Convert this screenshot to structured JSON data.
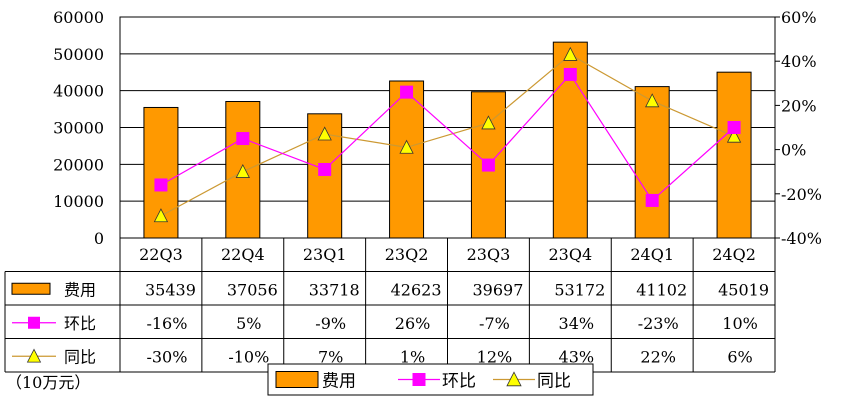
{
  "chart_data": {
    "type": "bar",
    "categories": [
      "22Q3",
      "22Q4",
      "23Q1",
      "23Q2",
      "23Q3",
      "23Q4",
      "24Q1",
      "24Q2"
    ],
    "series": [
      {
        "name": "费用",
        "type": "bar",
        "axis": "left",
        "values": [
          35439,
          37056,
          33718,
          42623,
          39697,
          53172,
          41102,
          45019
        ],
        "labels": [
          "35439",
          "37056",
          "33718",
          "42623",
          "39697",
          "53172",
          "41102",
          "45019"
        ],
        "color": "#FF9900"
      },
      {
        "name": "环比",
        "type": "line",
        "axis": "right",
        "marker": "square",
        "values": [
          -16,
          5,
          -9,
          26,
          -7,
          34,
          -23,
          10
        ],
        "labels": [
          "-16%",
          "5%",
          "-9%",
          "26%",
          "-7%",
          "34%",
          "-23%",
          "10%"
        ],
        "color": "#FF00FF"
      },
      {
        "name": "同比",
        "type": "line",
        "axis": "right",
        "marker": "triangle",
        "values": [
          -30,
          -10,
          7,
          1,
          12,
          43,
          22,
          6
        ],
        "labels": [
          "-30%",
          "-10%",
          "7%",
          "1%",
          "12%",
          "43%",
          "22%",
          "6%"
        ],
        "color": "#CC9933"
      }
    ],
    "ylim_left": [
      0,
      60000
    ],
    "yticks_left": [
      "0",
      "10000",
      "20000",
      "30000",
      "40000",
      "50000",
      "60000"
    ],
    "ylim_right": [
      -40,
      60
    ],
    "yticks_right": [
      "-40%",
      "-20%",
      "0%",
      "20%",
      "40%",
      "60%"
    ],
    "grid": true,
    "data_table": true,
    "legend_position": "bottom",
    "unit_note": "（10万元）"
  }
}
